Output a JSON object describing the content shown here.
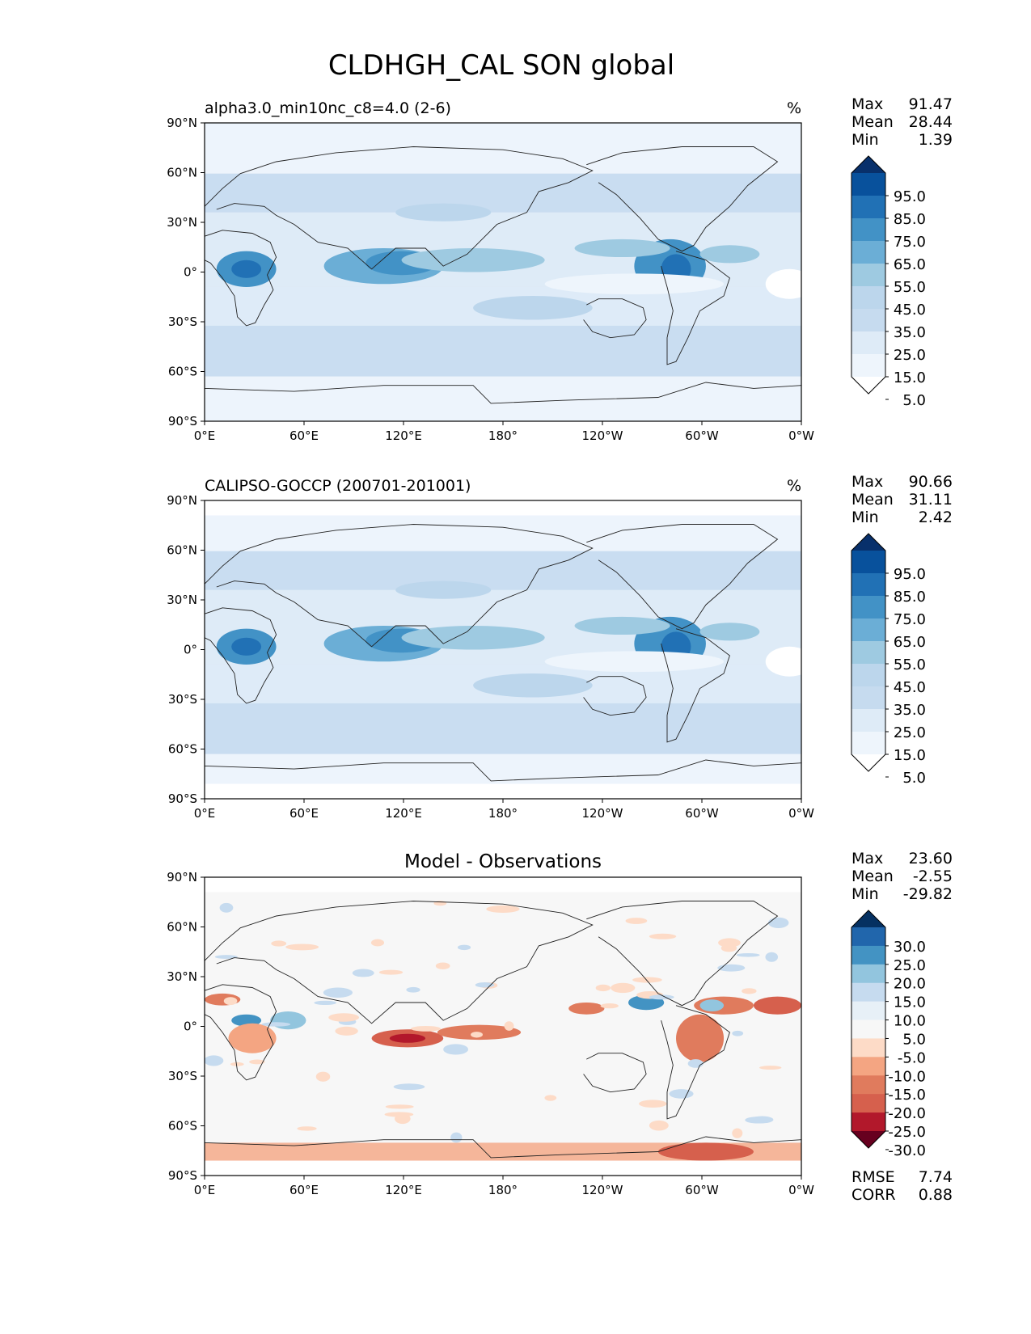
{
  "figure_title": "CLDHGH_CAL SON global",
  "panels": [
    {
      "title_left": "alpha3.0_min10nc_c8=4.0 (2-6)",
      "title_center": "",
      "units": "%",
      "stats": [
        {
          "label": "Max",
          "value": "91.47"
        },
        {
          "label": "Mean",
          "value": "28.44"
        },
        {
          "label": "Min",
          "value": "1.39"
        }
      ],
      "colorbar": {
        "labels": [
          "95.0",
          "85.0",
          "75.0",
          "65.0",
          "55.0",
          "45.0",
          "35.0",
          "25.0",
          "15.0",
          "5.0"
        ],
        "colors": [
          "#08306b",
          "#08519c",
          "#2171b5",
          "#4292c6",
          "#6baed6",
          "#9ecae1",
          "#bcd6ec",
          "#c6dbef",
          "#deebf7",
          "#eef5fc",
          "#ffffff"
        ]
      },
      "footer_stats": []
    },
    {
      "title_left": "CALIPSO-GOCCP (200701-201001)",
      "title_center": "",
      "units": "%",
      "stats": [
        {
          "label": "Max",
          "value": "90.66"
        },
        {
          "label": "Mean",
          "value": "31.11"
        },
        {
          "label": "Min",
          "value": "2.42"
        }
      ],
      "colorbar": {
        "labels": [
          "95.0",
          "85.0",
          "75.0",
          "65.0",
          "55.0",
          "45.0",
          "35.0",
          "25.0",
          "15.0",
          "5.0"
        ],
        "colors": [
          "#08306b",
          "#08519c",
          "#2171b5",
          "#4292c6",
          "#6baed6",
          "#9ecae1",
          "#bcd6ec",
          "#c6dbef",
          "#deebf7",
          "#eef5fc",
          "#ffffff"
        ]
      },
      "footer_stats": []
    },
    {
      "title_left": "",
      "title_center": "Model - Observations",
      "units": "",
      "stats": [
        {
          "label": "Max",
          "value": "23.60"
        },
        {
          "label": "Mean",
          "value": "-2.55"
        },
        {
          "label": "Min",
          "value": "-29.82"
        }
      ],
      "colorbar": {
        "labels": [
          "30.0",
          "25.0",
          "20.0",
          "15.0",
          "10.0",
          "5.0",
          "-5.0",
          "-10.0",
          "-15.0",
          "-20.0",
          "-25.0",
          "-30.0"
        ],
        "colors": [
          "#053061",
          "#2166ac",
          "#4393c3",
          "#92c5de",
          "#c6dbef",
          "#e7f0f7",
          "#f7f7f7",
          "#fddbc7",
          "#f4a582",
          "#e07b5d",
          "#d6604d",
          "#b2182b",
          "#67001f"
        ]
      },
      "footer_stats": [
        {
          "label": "RMSE",
          "value": "7.74"
        },
        {
          "label": "CORR",
          "value": "0.88"
        }
      ]
    }
  ],
  "axes": {
    "lat_ticks": [
      "90°N",
      "60°N",
      "30°N",
      "0°",
      "30°S",
      "60°S",
      "90°S"
    ],
    "lon_ticks": [
      "0°E",
      "60°E",
      "120°E",
      "180°",
      "120°W",
      "60°W",
      "0°W"
    ]
  }
}
